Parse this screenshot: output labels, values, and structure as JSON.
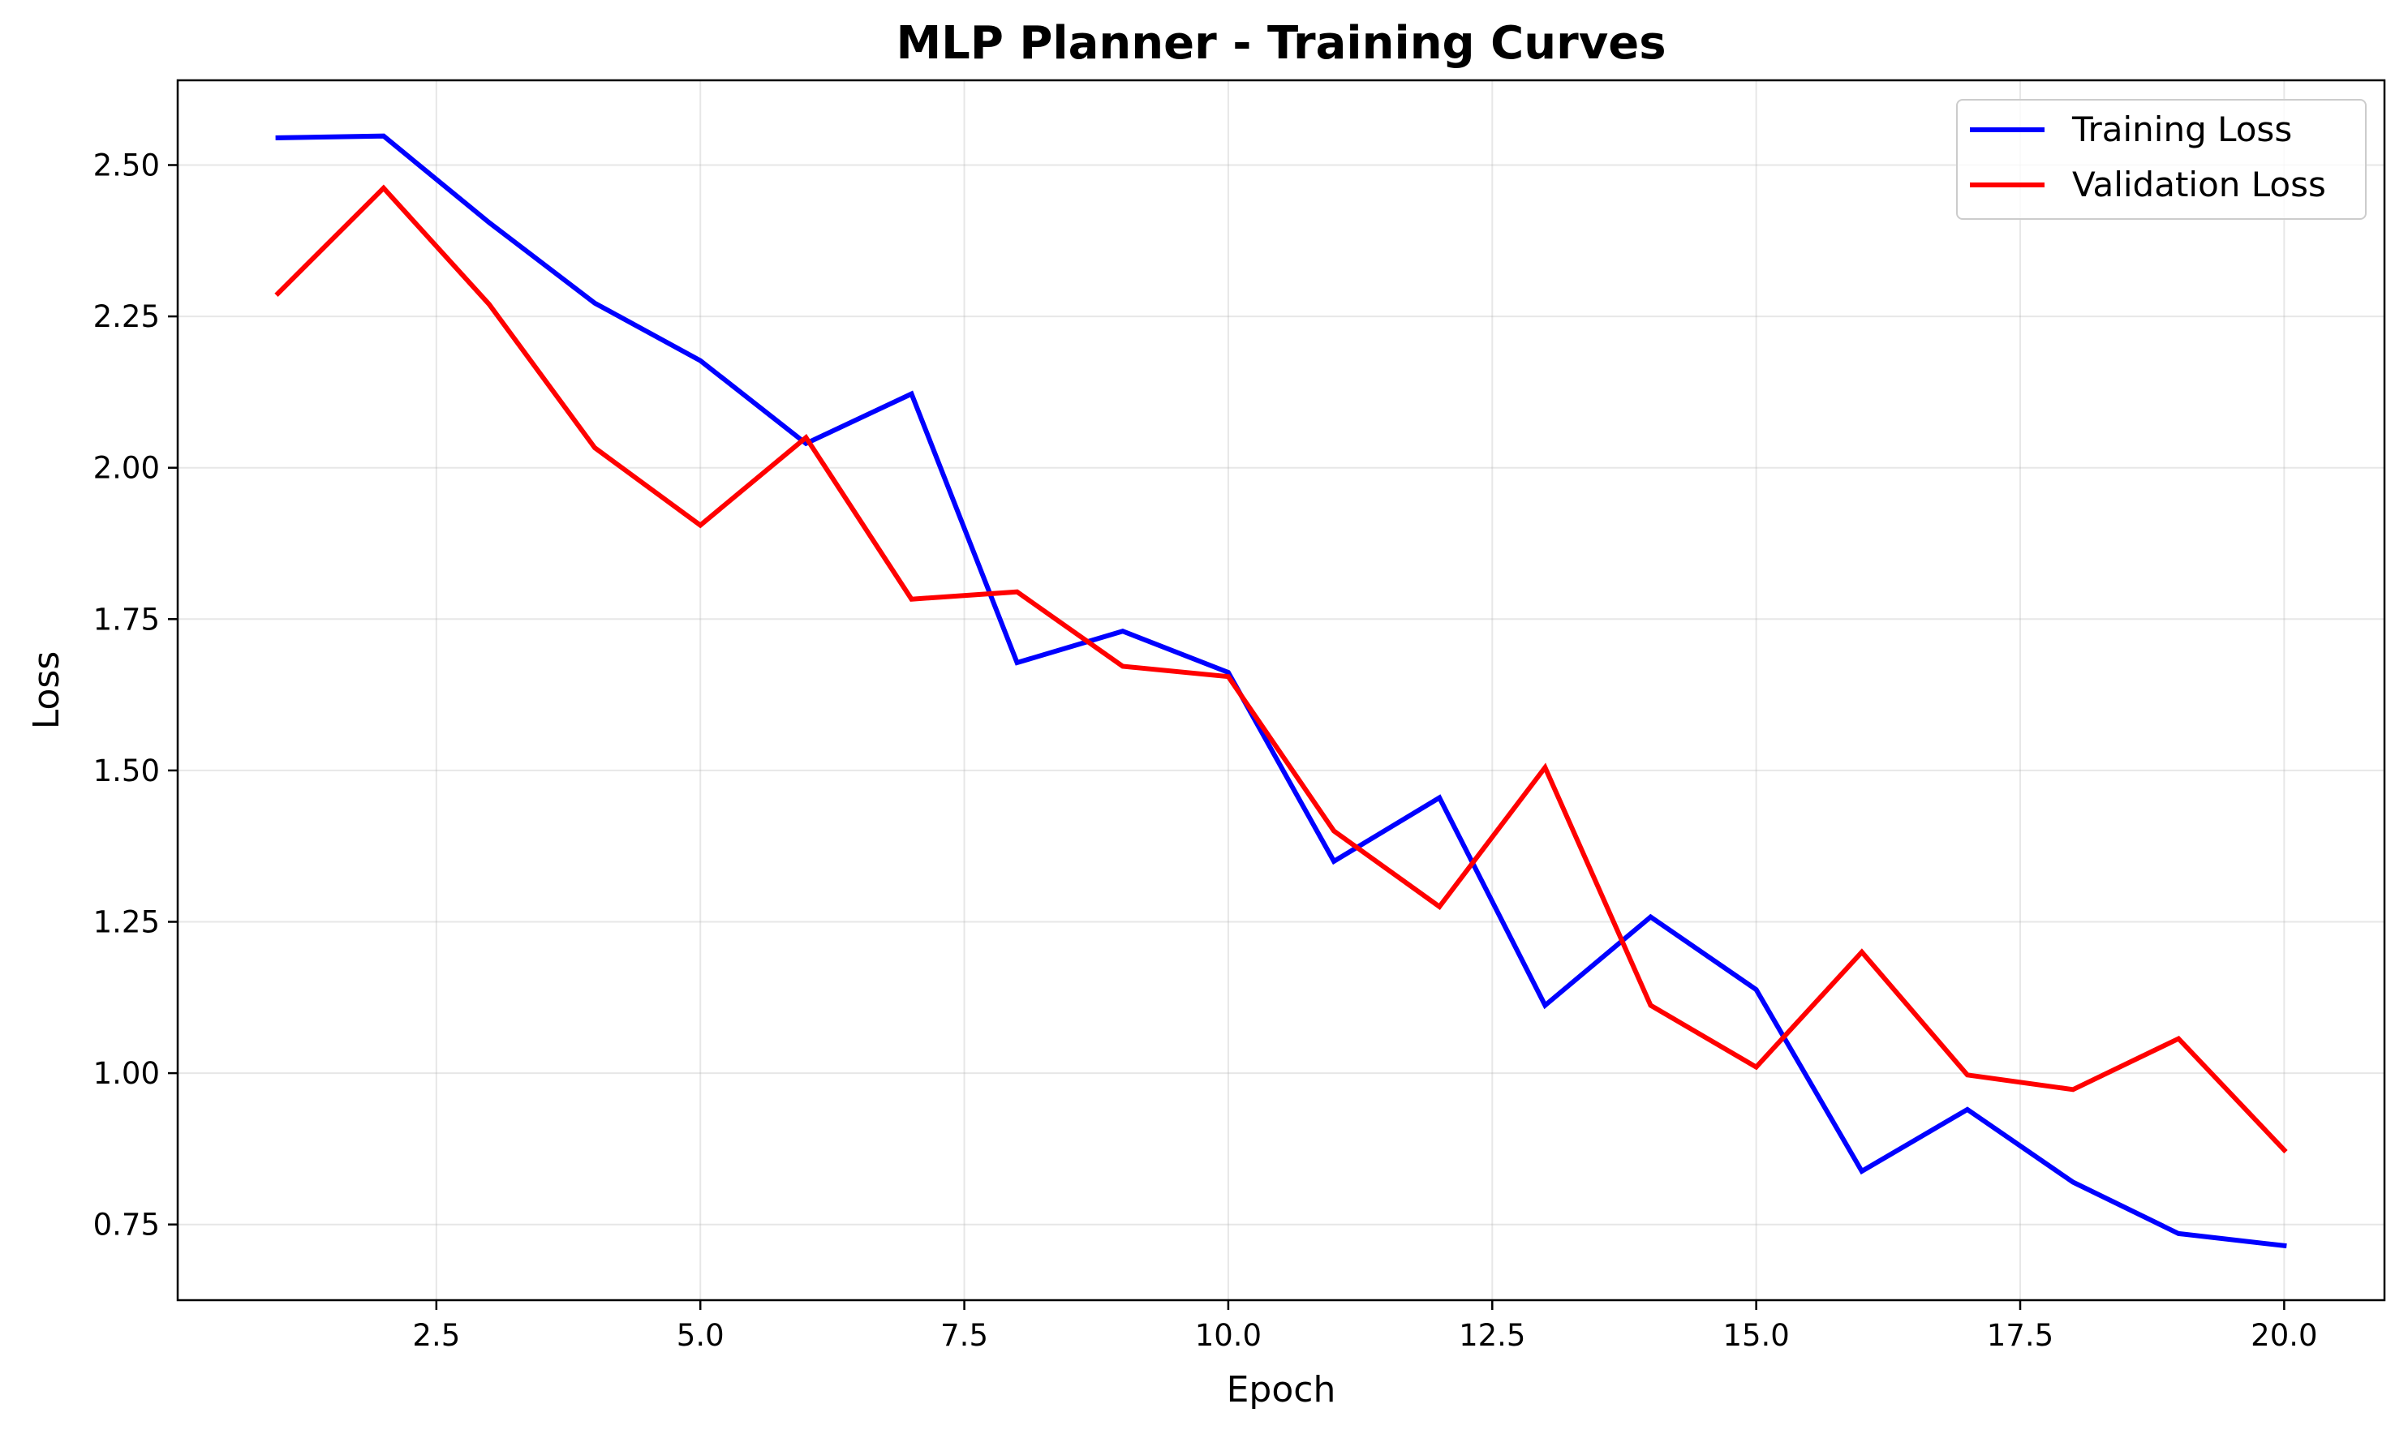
{
  "chart_data": {
    "type": "line",
    "title": "MLP Planner - Training Curves",
    "xlabel": "Epoch",
    "ylabel": "Loss",
    "xlim": [
      0.05,
      20.95
    ],
    "ylim": [
      0.625,
      2.64
    ],
    "xticks": [
      2.5,
      5.0,
      7.5,
      10.0,
      12.5,
      15.0,
      17.5,
      20.0
    ],
    "xtick_labels": [
      "2.5",
      "5.0",
      "7.5",
      "10.0",
      "12.5",
      "15.0",
      "17.5",
      "20.0"
    ],
    "yticks": [
      0.75,
      1.0,
      1.25,
      1.5,
      1.75,
      2.0,
      2.25,
      2.5
    ],
    "ytick_labels": [
      "0.75",
      "1.00",
      "1.25",
      "1.50",
      "1.75",
      "2.00",
      "2.25",
      "2.50"
    ],
    "grid": true,
    "legend_position": "top-right",
    "x": [
      1,
      2,
      3,
      4,
      5,
      6,
      7,
      8,
      9,
      10,
      11,
      12,
      13,
      14,
      15,
      16,
      17,
      18,
      19,
      20
    ],
    "series": [
      {
        "name": "Training Loss",
        "color": "#0000ff",
        "values": [
          2.545,
          2.548,
          2.405,
          2.272,
          2.177,
          2.04,
          2.122,
          1.678,
          1.73,
          1.662,
          1.35,
          1.455,
          1.112,
          1.258,
          1.138,
          0.838,
          0.94,
          0.82,
          0.735,
          0.715
        ]
      },
      {
        "name": "Validation Loss",
        "color": "#ff0000",
        "values": [
          2.288,
          2.462,
          2.27,
          2.033,
          1.905,
          2.05,
          1.783,
          1.795,
          1.672,
          1.655,
          1.4,
          1.275,
          1.505,
          1.112,
          1.01,
          1.2,
          0.997,
          0.973,
          1.057,
          0.873
        ]
      }
    ]
  }
}
